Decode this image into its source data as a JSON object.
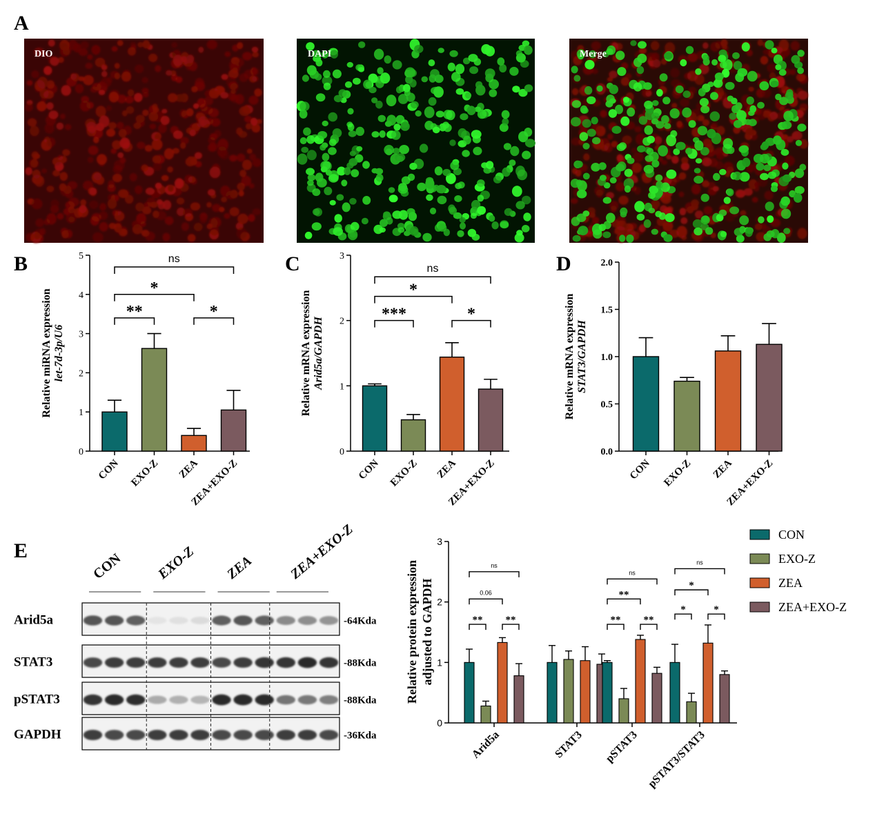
{
  "colors": {
    "CON": "#0b6a6b",
    "EXO-Z": "#7b8a56",
    "ZEA": "#d05f2d",
    "ZEA+EXO-Z": "#7b5a5f",
    "dio_bg": "#3a0505",
    "dapi_bg": "#021402",
    "nuclei_green": "#2fd12f",
    "cells_red": "#8a1010"
  },
  "panelA": {
    "letter": "A",
    "images": [
      {
        "label": "DIO",
        "icon": "red-fluorescence-image"
      },
      {
        "label": "DAPI",
        "icon": "green-nuclei-image"
      },
      {
        "label": "Merge",
        "icon": "merged-fluorescence-image"
      }
    ]
  },
  "chart_data": [
    {
      "panel": "B",
      "type": "bar",
      "ylabel_line1": "Relative miRNA expression",
      "ylabel_line2": "let-7d-3p/U6",
      "categories": [
        "CON",
        "EXO-Z",
        "ZEA",
        "ZEA+EXO-Z"
      ],
      "values": [
        1.0,
        2.62,
        0.4,
        1.05
      ],
      "errors": [
        0.3,
        0.38,
        0.18,
        0.5
      ],
      "ylim": [
        0,
        5
      ],
      "yticks": [
        "0",
        "1",
        "2",
        "3",
        "4",
        "5"
      ],
      "brackets": [
        {
          "from": 0,
          "to": 3,
          "label": "ns",
          "y": 4.7
        },
        {
          "from": 0,
          "to": 2,
          "label": "*",
          "y": 4.0
        },
        {
          "from": 0,
          "to": 1,
          "label": "**",
          "y": 3.4
        },
        {
          "from": 2,
          "to": 3,
          "label": "*",
          "y": 3.4
        }
      ]
    },
    {
      "panel": "C",
      "type": "bar",
      "ylabel_line1": "Relative mRNA expression",
      "ylabel_line2": "Arid5a/GAPDH",
      "categories": [
        "CON",
        "EXO-Z",
        "ZEA",
        "ZEA+EXO-Z"
      ],
      "values": [
        1.0,
        0.48,
        1.44,
        0.95
      ],
      "errors": [
        0.03,
        0.08,
        0.22,
        0.15
      ],
      "ylim": [
        0,
        3
      ],
      "yticks": [
        "0",
        "1",
        "2",
        "3"
      ],
      "brackets": [
        {
          "from": 0,
          "to": 3,
          "label": "ns",
          "y": 2.67
        },
        {
          "from": 0,
          "to": 2,
          "label": "*",
          "y": 2.37
        },
        {
          "from": 0,
          "to": 1,
          "label": "***",
          "y": 2.0
        },
        {
          "from": 2,
          "to": 3,
          "label": "*",
          "y": 2.0
        }
      ]
    },
    {
      "panel": "D",
      "type": "bar",
      "ylabel_line1": "Relative mRNA expression",
      "ylabel_line2": "STAT3/GAPDH",
      "categories": [
        "CON",
        "EXO-Z",
        "ZEA",
        "ZEA+EXO-Z"
      ],
      "values": [
        1.0,
        0.74,
        1.06,
        1.13
      ],
      "errors": [
        0.2,
        0.04,
        0.16,
        0.22
      ],
      "ylim": [
        0,
        2
      ],
      "yticks": [
        "0.0",
        "0.5",
        "1.0",
        "1.5",
        "2.0"
      ],
      "brackets": []
    },
    {
      "panel": "E",
      "type": "bar",
      "ylabel_line1": "Relative protein expression",
      "ylabel_line2": "adjusted to GAPDH",
      "categories": [
        "Arid5a",
        "STAT3",
        "pSTAT3",
        "pSTAT3/STAT3"
      ],
      "series": [
        {
          "name": "CON",
          "values": [
            1.0,
            1.0,
            1.0,
            1.0
          ],
          "errors": [
            0.22,
            0.28,
            0.03,
            0.3
          ]
        },
        {
          "name": "EXO-Z",
          "values": [
            0.28,
            1.05,
            0.4,
            0.35
          ],
          "errors": [
            0.08,
            0.14,
            0.17,
            0.14
          ]
        },
        {
          "name": "ZEA",
          "values": [
            1.33,
            1.03,
            1.38,
            1.32
          ],
          "errors": [
            0.08,
            0.23,
            0.07,
            0.3
          ]
        },
        {
          "name": "ZEA+EXO-Z",
          "values": [
            0.78,
            0.97,
            0.82,
            0.8
          ],
          "errors": [
            0.2,
            0.17,
            0.1,
            0.06
          ]
        }
      ],
      "ylim": [
        0,
        3
      ],
      "yticks": [
        "0",
        "1",
        "2",
        "3"
      ],
      "legend": "top-right",
      "brackets": [
        {
          "group": 0,
          "from": 0,
          "to": 3,
          "label": "ns",
          "y": 2.5
        },
        {
          "group": 0,
          "from": 0,
          "to": 2,
          "label": "0.06",
          "y": 2.05
        },
        {
          "group": 0,
          "from": 0,
          "to": 1,
          "label": "**",
          "y": 1.63
        },
        {
          "group": 0,
          "from": 2,
          "to": 3,
          "label": "**",
          "y": 1.63
        },
        {
          "group": 2,
          "from": 0,
          "to": 3,
          "label": "ns",
          "y": 2.38
        },
        {
          "group": 2,
          "from": 0,
          "to": 2,
          "label": "**",
          "y": 2.05
        },
        {
          "group": 2,
          "from": 0,
          "to": 1,
          "label": "**",
          "y": 1.63
        },
        {
          "group": 2,
          "from": 2,
          "to": 3,
          "label": "**",
          "y": 1.63
        },
        {
          "group": 3,
          "from": 0,
          "to": 3,
          "label": "ns",
          "y": 2.55
        },
        {
          "group": 3,
          "from": 0,
          "to": 2,
          "label": "*",
          "y": 2.2
        },
        {
          "group": 3,
          "from": 0,
          "to": 1,
          "label": "*",
          "y": 1.8
        },
        {
          "group": 3,
          "from": 2,
          "to": 3,
          "label": "*",
          "y": 1.8
        }
      ]
    }
  ],
  "blot": {
    "letter": "E",
    "groups": [
      "CON",
      "EXO-Z",
      "ZEA",
      "ZEA+EXO-Z"
    ],
    "rows": [
      {
        "protein": "Arid5a",
        "size": "-64Kda",
        "intensity": [
          [
            0.75,
            0.75,
            0.7
          ],
          [
            0.08,
            0.1,
            0.12
          ],
          [
            0.7,
            0.75,
            0.7
          ],
          [
            0.5,
            0.48,
            0.45
          ]
        ]
      },
      {
        "protein": "STAT3",
        "size": "-88Kda",
        "intensity": [
          [
            0.8,
            0.85,
            0.85
          ],
          [
            0.85,
            0.85,
            0.85
          ],
          [
            0.8,
            0.85,
            0.9
          ],
          [
            0.9,
            0.95,
            0.9
          ]
        ]
      },
      {
        "protein": "pSTAT3",
        "size": "-88Kda",
        "intensity": [
          [
            0.9,
            0.95,
            0.92
          ],
          [
            0.35,
            0.32,
            0.3
          ],
          [
            0.95,
            0.95,
            0.95
          ],
          [
            0.6,
            0.58,
            0.55
          ]
        ]
      },
      {
        "protein": "GAPDH",
        "size": "-36Kda",
        "intensity": [
          [
            0.85,
            0.8,
            0.8
          ],
          [
            0.85,
            0.85,
            0.85
          ],
          [
            0.8,
            0.8,
            0.8
          ],
          [
            0.85,
            0.85,
            0.8
          ]
        ]
      }
    ]
  }
}
